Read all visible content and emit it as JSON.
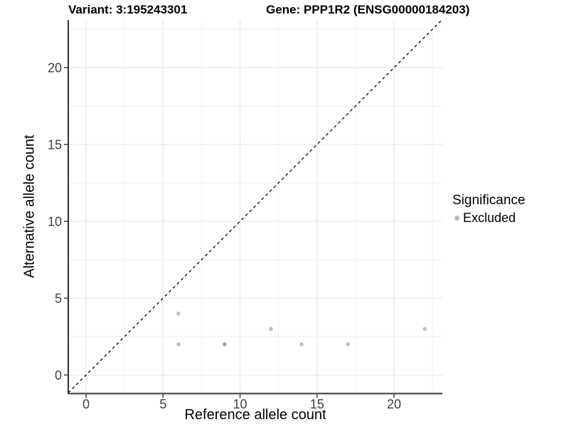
{
  "chart_data": {
    "type": "scatter",
    "title_left": "Variant: 3:195243301",
    "title_right": "Gene: PPP1R2 (ENSG00000184203)",
    "xlabel": "Reference allele count",
    "ylabel": "Alternative allele count",
    "xlim": [
      -1.15,
      23.15
    ],
    "ylim": [
      -1.2,
      23.1
    ],
    "x_ticks": [
      0,
      5,
      10,
      15,
      20
    ],
    "y_ticks": [
      0,
      5,
      10,
      15,
      20
    ],
    "x_minor_ticks": [
      2.5,
      7.5,
      12.5,
      17.5,
      22.5
    ],
    "y_minor_ticks": [
      2.5,
      7.5,
      12.5,
      17.5,
      22.5
    ],
    "grid": true,
    "reference_line": {
      "type": "identity y=x",
      "style": "dashed",
      "color": "#000000"
    },
    "series": [
      {
        "name": "Excluded",
        "color": "#bdbdbd",
        "points": [
          [
            6,
            4
          ],
          [
            6,
            2
          ],
          [
            9,
            2
          ],
          [
            9,
            2
          ],
          [
            12,
            3
          ],
          [
            14,
            2
          ],
          [
            17,
            2
          ],
          [
            22,
            3
          ]
        ]
      }
    ],
    "legend": {
      "title": "Significance",
      "position": "right",
      "items": [
        {
          "label": "Excluded",
          "color": "#bdbdbd",
          "marker": "dot-icon"
        }
      ]
    }
  },
  "colors": {
    "background": "#ffffff",
    "grid_major": "#e4e4e4",
    "grid_minor": "#f2f2f2",
    "axis_line_left": "#1a1a1a",
    "axis_line_bottom": "#5a5a5a",
    "tick_label": "#404040",
    "point_fill": "#8c8c8c"
  }
}
